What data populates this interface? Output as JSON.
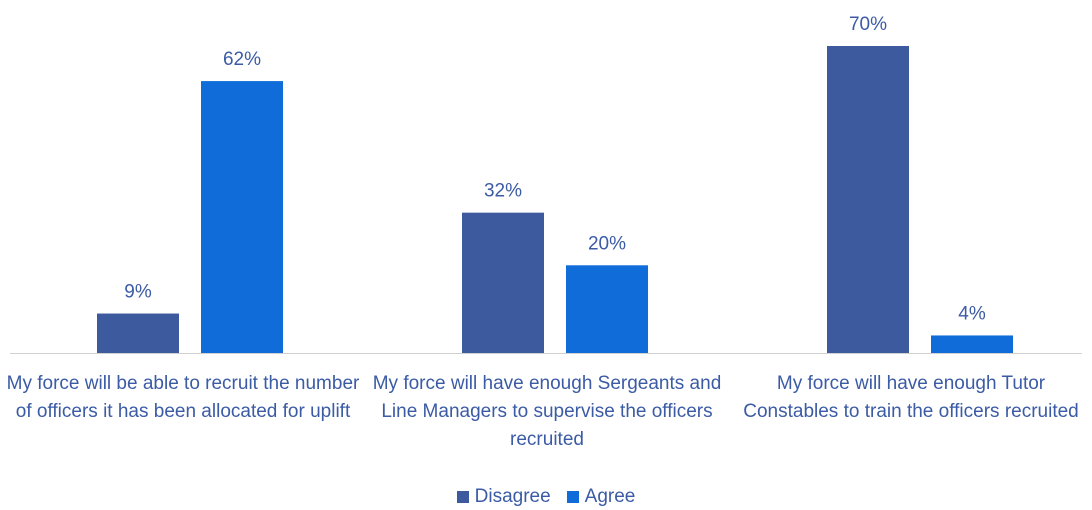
{
  "chart_data": {
    "type": "bar",
    "categories": [
      "My force will be able to recruit the number of officers it has been allocated for uplift",
      "My force will have enough Sergeants and Line Managers to supervise the officers recruited",
      "My force will have enough Tutor Constables to train the officers recruited"
    ],
    "series": [
      {
        "name": "Disagree",
        "values": [
          9,
          32,
          70
        ],
        "labels": [
          "9%",
          "32%",
          "70%"
        ],
        "color": "#3c5a9d"
      },
      {
        "name": "Agree",
        "values": [
          62,
          20,
          4
        ],
        "labels": [
          "62%",
          "20%",
          "4%"
        ],
        "color": "#0f6cd8"
      }
    ],
    "ylim": [
      0,
      70
    ],
    "grid": false,
    "legend_position": "bottom",
    "label_color": "#3b5ba5"
  }
}
